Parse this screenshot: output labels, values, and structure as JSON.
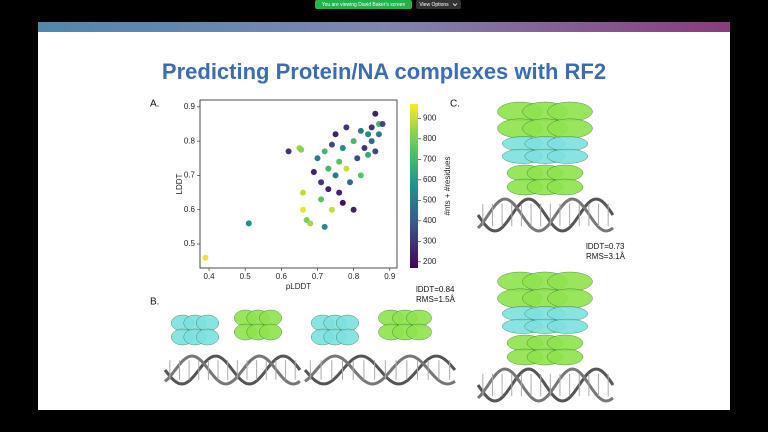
{
  "zoom_bar": {
    "status": "You are viewing David Baker's screen",
    "view_options": "View Options"
  },
  "slide": {
    "title": "Predicting Protein/NA complexes with RF2",
    "panel_a": {
      "label": "A."
    },
    "panel_b": {
      "label": "B.",
      "lddt": "lDDT=0.84",
      "rms": "RMS=1.5Å"
    },
    "panel_c": {
      "label": "C.",
      "lddt": "lDDT=0.73",
      "rms": "RMS=3.1Å"
    }
  },
  "chart_data": {
    "type": "scatter",
    "x_label": "pLDDT",
    "y_label": "LDDT",
    "colorbar_label": "#nts + #residues",
    "colormap": "viridis",
    "x": [
      0.39,
      0.51,
      0.62,
      0.65,
      0.655,
      0.66,
      0.66,
      0.67,
      0.68,
      0.69,
      0.7,
      0.71,
      0.71,
      0.72,
      0.72,
      0.73,
      0.73,
      0.74,
      0.74,
      0.75,
      0.75,
      0.76,
      0.76,
      0.77,
      0.77,
      0.78,
      0.78,
      0.79,
      0.8,
      0.8,
      0.81,
      0.82,
      0.82,
      0.83,
      0.84,
      0.84,
      0.85,
      0.85,
      0.86,
      0.87,
      0.87,
      0.86,
      0.88
    ],
    "y": [
      0.46,
      0.56,
      0.77,
      0.78,
      0.775,
      0.65,
      0.6,
      0.57,
      0.56,
      0.71,
      0.75,
      0.68,
      0.63,
      0.55,
      0.77,
      0.72,
      0.66,
      0.79,
      0.6,
      0.82,
      0.7,
      0.65,
      0.74,
      0.78,
      0.62,
      0.72,
      0.84,
      0.68,
      0.8,
      0.6,
      0.75,
      0.83,
      0.7,
      0.78,
      0.82,
      0.76,
      0.84,
      0.8,
      0.88,
      0.85,
      0.82,
      0.77,
      0.85
    ],
    "c": [
      950,
      550,
      300,
      850,
      820,
      900,
      950,
      800,
      850,
      250,
      500,
      300,
      750,
      550,
      700,
      700,
      250,
      350,
      900,
      250,
      500,
      250,
      750,
      550,
      200,
      900,
      300,
      450,
      700,
      250,
      350,
      500,
      750,
      300,
      550,
      650,
      300,
      450,
      250,
      700,
      500,
      350,
      350
    ],
    "xlim": [
      0.375,
      0.92
    ],
    "ylim": [
      0.43,
      0.92
    ],
    "clim": [
      170,
      970
    ],
    "xticks": [
      0.4,
      0.5,
      0.6,
      0.7,
      0.8,
      0.9
    ],
    "yticks": [
      0.5,
      0.6,
      0.7,
      0.8,
      0.9
    ],
    "cticks": [
      200,
      300,
      400,
      500,
      600,
      700,
      800,
      900
    ]
  }
}
